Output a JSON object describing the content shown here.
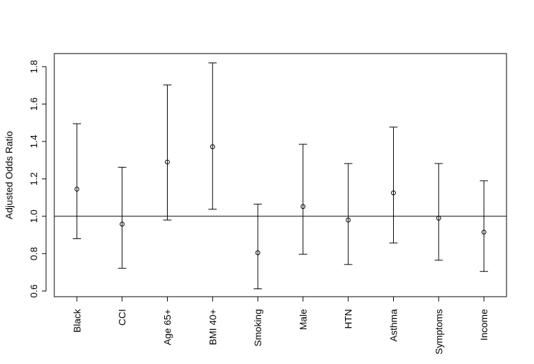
{
  "chart_data": {
    "type": "scatter",
    "subtype": "point-estimate-with-confidence-intervals",
    "title": "",
    "xlabel": "",
    "ylabel": "Adjusted Odds Ratio",
    "categories": [
      "Black",
      "CCI",
      "Age 65+",
      "BMI 40+",
      "Smoking",
      "Male",
      "HTN",
      "Asthma",
      "Symptoms",
      "Income"
    ],
    "estimates": [
      1.145,
      0.958,
      1.29,
      1.372,
      0.805,
      1.052,
      0.98,
      1.125,
      0.99,
      0.915
    ],
    "lower": [
      0.88,
      0.722,
      0.98,
      1.038,
      0.612,
      0.797,
      0.742,
      0.857,
      0.765,
      0.705
    ],
    "upper": [
      1.495,
      1.262,
      1.702,
      1.82,
      1.065,
      1.385,
      1.282,
      1.477,
      1.282,
      1.19
    ],
    "reference_line": 1.0,
    "ylim": [
      0.57,
      1.87
    ],
    "yticks": [
      "0.6",
      "0.8",
      "1.0",
      "1.2",
      "1.4",
      "1.6",
      "1.8"
    ],
    "grid": false,
    "legend": "none"
  }
}
